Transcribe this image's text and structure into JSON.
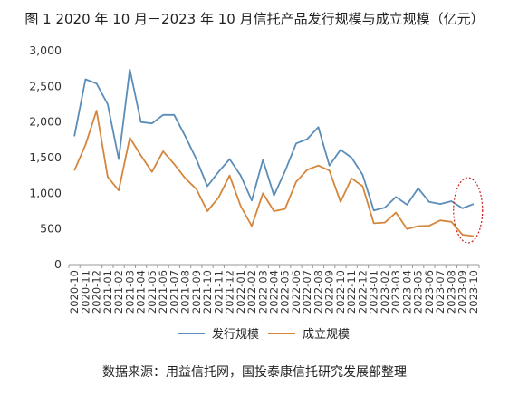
{
  "title": "图 1 2020 年 10 月－2023 年 10 月信托产品发行规模与成立规模（亿元）",
  "source": "数据来源：用益信托网，国投泰康信托研究发展部整理",
  "chart_data": {
    "type": "line",
    "title": "图 1 2020 年 10 月－2023 年 10 月信托产品发行规模与成立规模（亿元）",
    "xlabel": "",
    "ylabel": "",
    "ylim": [
      0,
      3000
    ],
    "yticks": [
      0,
      500,
      1000,
      1500,
      2000,
      2500,
      3000
    ],
    "ytick_labels": [
      "0",
      "500",
      "1,000",
      "1,500",
      "2,000",
      "2,500",
      "3,000"
    ],
    "grid": false,
    "legend": "bottom",
    "x": [
      "2020-10",
      "2020-11",
      "2020-12",
      "2021-01",
      "2021-02",
      "2021-03",
      "2021-04",
      "2021-05",
      "2021-06",
      "2021-07",
      "2021-08",
      "2021-09",
      "2021-10",
      "2021-11",
      "2021-12",
      "2022-01",
      "2022-02",
      "2022-03",
      "2022-04",
      "2022-05",
      "2022-06",
      "2022-07",
      "2022-08",
      "2022-09",
      "2022-10",
      "2022-11",
      "2022-12",
      "2023-01",
      "2023-02",
      "2023-03",
      "2023-04",
      "2023-05",
      "2023-06",
      "2023-07",
      "2023-08",
      "2023-09",
      "2023-10"
    ],
    "series": [
      {
        "name": "发行规模",
        "color": "#5b8db8",
        "values": [
          1800,
          2600,
          2540,
          2250,
          1480,
          2740,
          2000,
          1980,
          2100,
          2100,
          1800,
          1480,
          1100,
          1300,
          1480,
          1250,
          900,
          1470,
          970,
          1310,
          1700,
          1760,
          1930,
          1390,
          1610,
          1500,
          1260,
          760,
          800,
          950,
          840,
          1070,
          880,
          850,
          890,
          790,
          850
        ]
      },
      {
        "name": "成立规模",
        "color": "#d4863c",
        "values": [
          1320,
          1680,
          2160,
          1230,
          1040,
          1780,
          1530,
          1300,
          1590,
          1410,
          1210,
          1060,
          750,
          940,
          1250,
          820,
          540,
          1000,
          750,
          780,
          1160,
          1330,
          1390,
          1320,
          880,
          1210,
          1100,
          580,
          590,
          730,
          500,
          540,
          545,
          620,
          600,
          420,
          400
        ]
      }
    ],
    "annotation": {
      "type": "dashed-ellipse",
      "color": "#cc2222",
      "around": [
        "2023-09",
        "2023-10"
      ]
    }
  }
}
